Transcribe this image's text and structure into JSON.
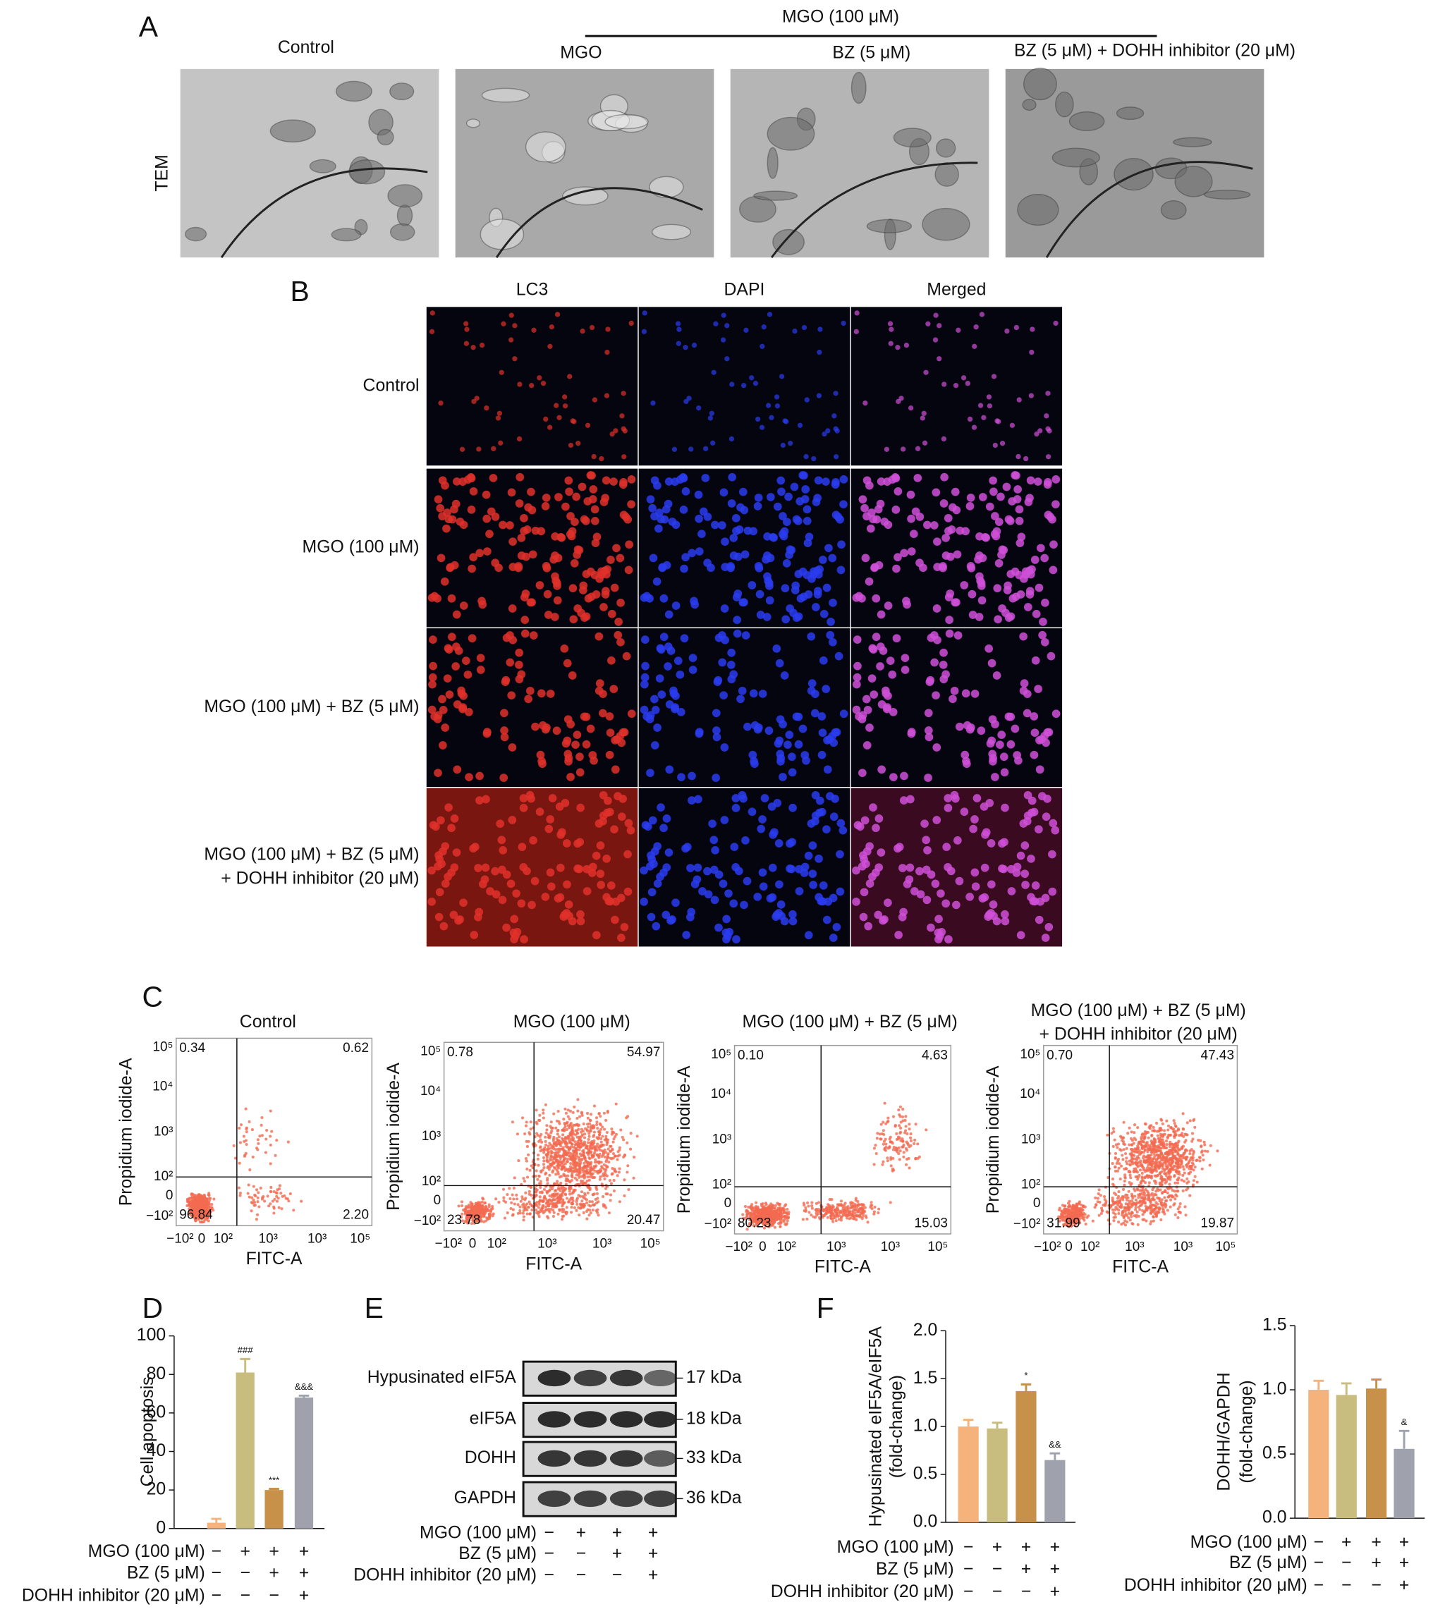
{
  "panel_a": {
    "label": "A",
    "group_label": "MGO (100 μM)",
    "row_label": "TEM",
    "columns": [
      "Control",
      "MGO",
      "BZ (5 μM)",
      "BZ (5 μM) + DOHH inhibitor (20 μM)"
    ]
  },
  "panel_b": {
    "label": "B",
    "columns": [
      "LC3",
      "DAPI",
      "Merged"
    ],
    "rows": [
      [
        "Control"
      ],
      [
        "MGO (100 μM)"
      ],
      [
        "MGO (100 μM) + BZ (5 μM)"
      ],
      [
        "MGO (100 μM) + BZ (5 μM)",
        "+ DOHH inhibitor (20 μM)"
      ]
    ]
  },
  "panel_c": {
    "label": "C",
    "x_label": "FITC-A",
    "y_label": "Propidium iodide-A",
    "yticks": [
      "10⁵",
      "10⁴",
      "10³",
      "10²",
      "0",
      "−10²"
    ],
    "xticks": [
      "−10²",
      "0",
      "10²",
      "10³",
      "10³",
      "10⁵"
    ],
    "plots": [
      {
        "title": [
          "Control"
        ],
        "quadrants": [
          "0.34",
          "0.62",
          "96.84",
          "2.20"
        ]
      },
      {
        "title": [
          "MGO (100 μM)"
        ],
        "quadrants": [
          "0.78",
          "54.97",
          "23.78",
          "20.47"
        ]
      },
      {
        "title": [
          "MGO (100 μM) + BZ (5 μM)"
        ],
        "quadrants": [
          "0.10",
          "4.63",
          "80.23",
          "15.03"
        ]
      },
      {
        "title": [
          "MGO (100 μM) + BZ (5 μM)",
          "+ DOHH inhibitor (20 μM)"
        ],
        "quadrants": [
          "0.70",
          "47.43",
          "31.99",
          "19.87"
        ]
      }
    ]
  },
  "panel_e": {
    "label": "E",
    "bands": [
      {
        "name": "Hypusinated eIF5A",
        "size": "17 kDa"
      },
      {
        "name": "eIF5A",
        "size": "18 kDa"
      },
      {
        "name": "DOHH",
        "size": "33 kDa"
      },
      {
        "name": "GAPDH",
        "size": "36 kDa"
      }
    ],
    "conditions": [
      {
        "label": "MGO (100 μM)",
        "signs": [
          "−",
          "+",
          "+",
          "+"
        ]
      },
      {
        "label": "BZ (5 μM)",
        "signs": [
          "−",
          "−",
          "+",
          "+"
        ]
      },
      {
        "label": "DOHH inhibitor (20 μM)",
        "signs": [
          "−",
          "−",
          "−",
          "+"
        ]
      }
    ]
  },
  "chart_data": [
    {
      "type": "bar",
      "panel": "D",
      "y_label": [
        "Cell apoptosis"
      ],
      "values": [
        3,
        81,
        20,
        68
      ],
      "errors": [
        2,
        7,
        0.6,
        1
      ],
      "annotations": [
        null,
        "###",
        "***",
        "&&&"
      ],
      "colors": [
        "#f5b27a",
        "#c8bd7e",
        "#c8914a",
        "#9fa2ad"
      ],
      "ylim": [
        0,
        100
      ],
      "yticks": [
        0,
        20,
        40,
        60,
        80,
        100
      ],
      "conditions": [
        {
          "label": "MGO (100 μM)",
          "signs": [
            "−",
            "+",
            "+",
            "+"
          ]
        },
        {
          "label": "BZ (5 μM)",
          "signs": [
            "−",
            "−",
            "+",
            "+"
          ]
        },
        {
          "label": "DOHH inhibitor (20 μM)",
          "signs": [
            "−",
            "−",
            "−",
            "+"
          ]
        }
      ]
    },
    {
      "type": "bar",
      "panel": "F",
      "y_label": [
        "Hypusinated eIF5A/eIF5A",
        "(fold-change)"
      ],
      "values": [
        1.0,
        0.98,
        1.37,
        0.65
      ],
      "errors": [
        0.07,
        0.06,
        0.07,
        0.07
      ],
      "annotations": [
        null,
        null,
        "*",
        "&&"
      ],
      "colors": [
        "#f5b27a",
        "#c8bd7e",
        "#c8914a",
        "#9fa2ad"
      ],
      "ylim": [
        0,
        2
      ],
      "yticks": [
        {
          "value": 0,
          "label": "0.0"
        },
        {
          "value": 0.5,
          "label": "0.5"
        },
        {
          "value": 1,
          "label": "1.0"
        },
        {
          "value": 1.5,
          "label": "1.5"
        },
        {
          "value": 2,
          "label": "2.0"
        }
      ],
      "conditions": [
        {
          "label": "MGO (100 μM)",
          "signs": [
            "−",
            "+",
            "+",
            "+"
          ]
        },
        {
          "label": "BZ (5 μM)",
          "signs": [
            "−",
            "−",
            "+",
            "+"
          ]
        },
        {
          "label": "DOHH inhibitor (20 μM)",
          "signs": [
            "−",
            "−",
            "−",
            "+"
          ]
        }
      ]
    },
    {
      "type": "bar",
      "y_label": [
        "DOHH/GAPDH",
        "(fold-change)"
      ],
      "values": [
        1.0,
        0.96,
        1.01,
        0.54
      ],
      "errors": [
        0.07,
        0.09,
        0.07,
        0.14
      ],
      "annotations": [
        null,
        null,
        null,
        "&"
      ],
      "colors": [
        "#f5b27a",
        "#c8bd7e",
        "#c8914a",
        "#9fa2ad"
      ],
      "ylim": [
        0,
        1.5
      ],
      "yticks": [
        {
          "value": 0,
          "label": "0.0"
        },
        {
          "value": 0.5,
          "label": "0.5"
        },
        {
          "value": 1,
          "label": "1.0"
        },
        {
          "value": 1.5,
          "label": "1.5"
        }
      ],
      "conditions": [
        {
          "label": "MGO (100 μM)",
          "signs": [
            "−",
            "+",
            "+",
            "+"
          ]
        },
        {
          "label": "BZ (5 μM)",
          "signs": [
            "−",
            "−",
            "+",
            "+"
          ]
        },
        {
          "label": "DOHH inhibitor (20 μM)",
          "signs": [
            "−",
            "−",
            "−",
            "+"
          ]
        }
      ]
    }
  ]
}
